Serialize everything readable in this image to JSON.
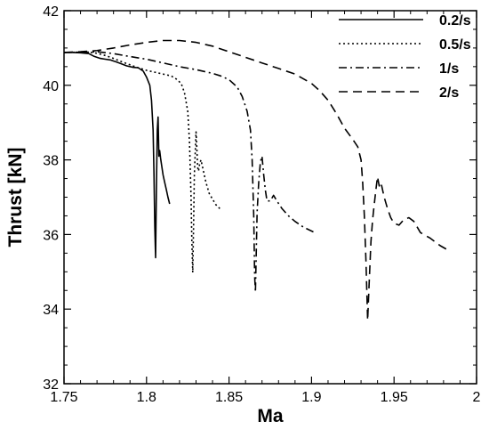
{
  "chart_data": {
    "type": "line",
    "title": "",
    "xlabel": "Ma",
    "ylabel": "Thrust [kN]",
    "xlim": [
      1.75,
      2.0
    ],
    "ylim": [
      32,
      42
    ],
    "x_ticks": [
      "1.75",
      "1.8",
      "1.85",
      "1.9",
      "1.95",
      "2"
    ],
    "y_ticks": [
      "32",
      "34",
      "36",
      "38",
      "40",
      "42"
    ],
    "grid": false,
    "legend_position": "top-right",
    "series": [
      {
        "name": "0.2/s",
        "line_style": "solid",
        "points": [
          [
            1.75,
            40.88
          ],
          [
            1.755,
            40.88
          ],
          [
            1.76,
            40.87
          ],
          [
            1.765,
            40.85
          ],
          [
            1.768,
            40.78
          ],
          [
            1.772,
            40.72
          ],
          [
            1.775,
            40.7
          ],
          [
            1.778,
            40.68
          ],
          [
            1.782,
            40.62
          ],
          [
            1.785,
            40.57
          ],
          [
            1.788,
            40.52
          ],
          [
            1.792,
            40.48
          ],
          [
            1.795,
            40.47
          ],
          [
            1.798,
            40.38
          ],
          [
            1.8,
            40.22
          ],
          [
            1.802,
            40.0
          ],
          [
            1.803,
            39.6
          ],
          [
            1.804,
            38.8
          ],
          [
            1.8045,
            37.6
          ],
          [
            1.805,
            36.2
          ],
          [
            1.8055,
            35.38
          ],
          [
            1.806,
            37.2
          ],
          [
            1.8065,
            38.8
          ],
          [
            1.807,
            39.15
          ],
          [
            1.8075,
            38.1
          ],
          [
            1.808,
            38.25
          ],
          [
            1.8085,
            38.05
          ],
          [
            1.809,
            37.9
          ],
          [
            1.81,
            37.6
          ],
          [
            1.811,
            37.4
          ],
          [
            1.812,
            37.2
          ],
          [
            1.813,
            37.0
          ],
          [
            1.814,
            36.82
          ]
        ]
      },
      {
        "name": "0.5/s",
        "line_style": "dotted",
        "points": [
          [
            1.75,
            40.88
          ],
          [
            1.765,
            40.89
          ],
          [
            1.77,
            40.86
          ],
          [
            1.775,
            40.8
          ],
          [
            1.78,
            40.72
          ],
          [
            1.785,
            40.63
          ],
          [
            1.79,
            40.55
          ],
          [
            1.795,
            40.47
          ],
          [
            1.8,
            40.4
          ],
          [
            1.805,
            40.35
          ],
          [
            1.81,
            40.3
          ],
          [
            1.815,
            40.25
          ],
          [
            1.818,
            40.17
          ],
          [
            1.821,
            40.05
          ],
          [
            1.823,
            39.8
          ],
          [
            1.825,
            39.3
          ],
          [
            1.826,
            38.5
          ],
          [
            1.827,
            37.0
          ],
          [
            1.8275,
            35.8
          ],
          [
            1.828,
            34.98
          ],
          [
            1.8285,
            36.2
          ],
          [
            1.829,
            37.6
          ],
          [
            1.8295,
            38.2
          ],
          [
            1.83,
            38.75
          ],
          [
            1.8305,
            38.3
          ],
          [
            1.831,
            37.8
          ],
          [
            1.8315,
            37.7
          ],
          [
            1.832,
            37.85
          ],
          [
            1.833,
            38.0
          ],
          [
            1.834,
            37.8
          ],
          [
            1.836,
            37.4
          ],
          [
            1.838,
            37.1
          ],
          [
            1.84,
            36.95
          ],
          [
            1.842,
            36.8
          ],
          [
            1.845,
            36.67
          ]
        ]
      },
      {
        "name": "1/s",
        "line_style": "dashdot",
        "points": [
          [
            1.75,
            40.88
          ],
          [
            1.765,
            40.89
          ],
          [
            1.77,
            40.9
          ],
          [
            1.78,
            40.85
          ],
          [
            1.79,
            40.77
          ],
          [
            1.8,
            40.7
          ],
          [
            1.81,
            40.6
          ],
          [
            1.82,
            40.5
          ],
          [
            1.83,
            40.42
          ],
          [
            1.84,
            40.32
          ],
          [
            1.845,
            40.25
          ],
          [
            1.85,
            40.15
          ],
          [
            1.855,
            39.95
          ],
          [
            1.858,
            39.7
          ],
          [
            1.861,
            39.3
          ],
          [
            1.863,
            38.8
          ],
          [
            1.864,
            38.0
          ],
          [
            1.865,
            36.5
          ],
          [
            1.8655,
            34.9
          ],
          [
            1.866,
            34.45
          ],
          [
            1.8665,
            35.5
          ],
          [
            1.867,
            36.6
          ],
          [
            1.868,
            37.4
          ],
          [
            1.869,
            37.95
          ],
          [
            1.87,
            38.1
          ],
          [
            1.871,
            37.6
          ],
          [
            1.872,
            37.2
          ],
          [
            1.873,
            36.9
          ],
          [
            1.875,
            36.9
          ],
          [
            1.877,
            37.05
          ],
          [
            1.879,
            36.9
          ],
          [
            1.882,
            36.7
          ],
          [
            1.886,
            36.5
          ],
          [
            1.89,
            36.35
          ],
          [
            1.895,
            36.2
          ],
          [
            1.902,
            36.05
          ]
        ]
      },
      {
        "name": "2/s",
        "line_style": "dashed",
        "points": [
          [
            1.75,
            40.88
          ],
          [
            1.76,
            40.9
          ],
          [
            1.77,
            40.93
          ],
          [
            1.78,
            41.0
          ],
          [
            1.79,
            41.08
          ],
          [
            1.8,
            41.15
          ],
          [
            1.81,
            41.2
          ],
          [
            1.82,
            41.2
          ],
          [
            1.83,
            41.15
          ],
          [
            1.84,
            41.05
          ],
          [
            1.85,
            40.9
          ],
          [
            1.86,
            40.75
          ],
          [
            1.87,
            40.6
          ],
          [
            1.88,
            40.45
          ],
          [
            1.89,
            40.3
          ],
          [
            1.9,
            40.05
          ],
          [
            1.905,
            39.85
          ],
          [
            1.91,
            39.6
          ],
          [
            1.915,
            39.25
          ],
          [
            1.92,
            38.85
          ],
          [
            1.925,
            38.55
          ],
          [
            1.928,
            38.35
          ],
          [
            1.93,
            38.0
          ],
          [
            1.931,
            37.4
          ],
          [
            1.932,
            36.5
          ],
          [
            1.933,
            35.3
          ],
          [
            1.934,
            33.7
          ],
          [
            1.935,
            34.8
          ],
          [
            1.936,
            35.8
          ],
          [
            1.937,
            36.4
          ],
          [
            1.938,
            36.8
          ],
          [
            1.939,
            37.2
          ],
          [
            1.94,
            37.55
          ],
          [
            1.941,
            37.3
          ],
          [
            1.942,
            37.4
          ],
          [
            1.944,
            37.0
          ],
          [
            1.946,
            36.7
          ],
          [
            1.948,
            36.45
          ],
          [
            1.95,
            36.3
          ],
          [
            1.953,
            36.25
          ],
          [
            1.956,
            36.4
          ],
          [
            1.959,
            36.45
          ],
          [
            1.962,
            36.35
          ],
          [
            1.966,
            36.05
          ],
          [
            1.972,
            35.9
          ],
          [
            1.978,
            35.7
          ],
          [
            1.984,
            35.55
          ]
        ]
      }
    ]
  }
}
